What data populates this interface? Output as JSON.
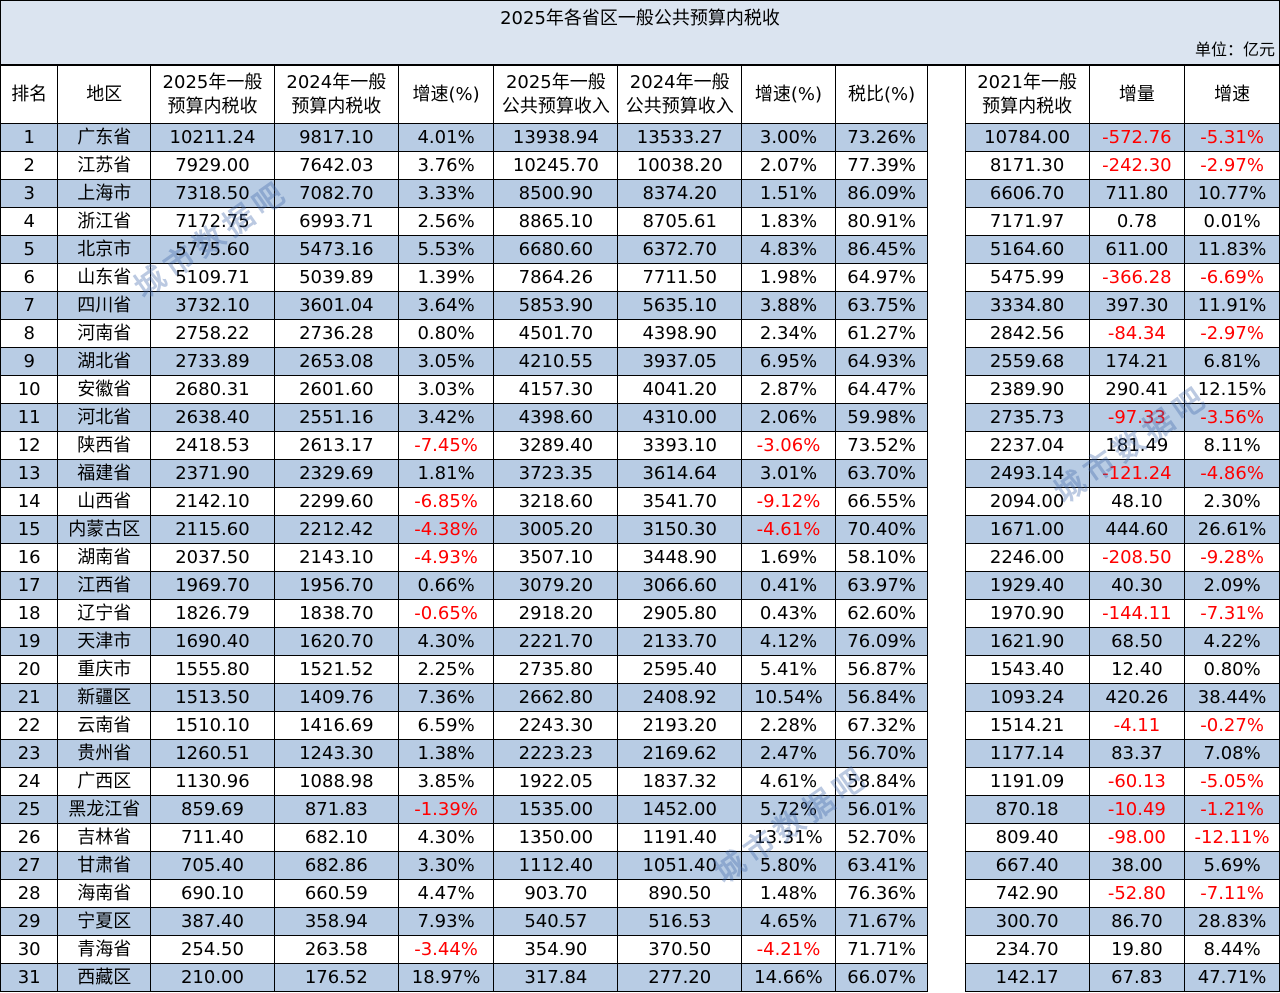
{
  "title": "2025年各省区一般公共预算内税收",
  "unit": "单位：亿元",
  "headers": [
    "排名",
    "地区",
    "2025年一般 预算内税收",
    "2024年一般 预算内税收",
    "增速(%)",
    "2025年一般 公共预算收入",
    "2024年一般 公共预算收入",
    "增速(%)",
    "税比(%)",
    "2021年一般 预算内税收",
    "增量",
    "增速"
  ],
  "rows": [
    [
      "1",
      "广东省",
      "10211.24",
      "9817.10",
      "4.01%",
      "13938.94",
      "13533.27",
      "3.00%",
      "73.26%",
      "10784.00",
      "-572.76",
      "-5.31%"
    ],
    [
      "2",
      "江苏省",
      "7929.00",
      "7642.03",
      "3.76%",
      "10245.70",
      "10038.20",
      "2.07%",
      "77.39%",
      "8171.30",
      "-242.30",
      "-2.97%"
    ],
    [
      "3",
      "上海市",
      "7318.50",
      "7082.70",
      "3.33%",
      "8500.90",
      "8374.20",
      "1.51%",
      "86.09%",
      "6606.70",
      "711.80",
      "10.77%"
    ],
    [
      "4",
      "浙江省",
      "7172.75",
      "6993.71",
      "2.56%",
      "8865.10",
      "8705.61",
      "1.83%",
      "80.91%",
      "7171.97",
      "0.78",
      "0.01%"
    ],
    [
      "5",
      "北京市",
      "5775.60",
      "5473.16",
      "5.53%",
      "6680.60",
      "6372.70",
      "4.83%",
      "86.45%",
      "5164.60",
      "611.00",
      "11.83%"
    ],
    [
      "6",
      "山东省",
      "5109.71",
      "5039.89",
      "1.39%",
      "7864.26",
      "7711.50",
      "1.98%",
      "64.97%",
      "5475.99",
      "-366.28",
      "-6.69%"
    ],
    [
      "7",
      "四川省",
      "3732.10",
      "3601.04",
      "3.64%",
      "5853.90",
      "5635.10",
      "3.88%",
      "63.75%",
      "3334.80",
      "397.30",
      "11.91%"
    ],
    [
      "8",
      "河南省",
      "2758.22",
      "2736.28",
      "0.80%",
      "4501.70",
      "4398.90",
      "2.34%",
      "61.27%",
      "2842.56",
      "-84.34",
      "-2.97%"
    ],
    [
      "9",
      "湖北省",
      "2733.89",
      "2653.08",
      "3.05%",
      "4210.55",
      "3937.05",
      "6.95%",
      "64.93%",
      "2559.68",
      "174.21",
      "6.81%"
    ],
    [
      "10",
      "安徽省",
      "2680.31",
      "2601.60",
      "3.03%",
      "4157.30",
      "4041.20",
      "2.87%",
      "64.47%",
      "2389.90",
      "290.41",
      "12.15%"
    ],
    [
      "11",
      "河北省",
      "2638.40",
      "2551.16",
      "3.42%",
      "4398.60",
      "4310.00",
      "2.06%",
      "59.98%",
      "2735.73",
      "-97.33",
      "-3.56%"
    ],
    [
      "12",
      "陕西省",
      "2418.53",
      "2613.17",
      "-7.45%",
      "3289.40",
      "3393.10",
      "-3.06%",
      "73.52%",
      "2237.04",
      "181.49",
      "8.11%"
    ],
    [
      "13",
      "福建省",
      "2371.90",
      "2329.69",
      "1.81%",
      "3723.35",
      "3614.64",
      "3.01%",
      "63.70%",
      "2493.14",
      "-121.24",
      "-4.86%"
    ],
    [
      "14",
      "山西省",
      "2142.10",
      "2299.60",
      "-6.85%",
      "3218.60",
      "3541.70",
      "-9.12%",
      "66.55%",
      "2094.00",
      "48.10",
      "2.30%"
    ],
    [
      "15",
      "内蒙古区",
      "2115.60",
      "2212.42",
      "-4.38%",
      "3005.20",
      "3150.30",
      "-4.61%",
      "70.40%",
      "1671.00",
      "444.60",
      "26.61%"
    ],
    [
      "16",
      "湖南省",
      "2037.50",
      "2143.10",
      "-4.93%",
      "3507.10",
      "3448.90",
      "1.69%",
      "58.10%",
      "2246.00",
      "-208.50",
      "-9.28%"
    ],
    [
      "17",
      "江西省",
      "1969.70",
      "1956.70",
      "0.66%",
      "3079.20",
      "3066.60",
      "0.41%",
      "63.97%",
      "1929.40",
      "40.30",
      "2.09%"
    ],
    [
      "18",
      "辽宁省",
      "1826.79",
      "1838.70",
      "-0.65%",
      "2918.20",
      "2905.80",
      "0.43%",
      "62.60%",
      "1970.90",
      "-144.11",
      "-7.31%"
    ],
    [
      "19",
      "天津市",
      "1690.40",
      "1620.70",
      "4.30%",
      "2221.70",
      "2133.70",
      "4.12%",
      "76.09%",
      "1621.90",
      "68.50",
      "4.22%"
    ],
    [
      "20",
      "重庆市",
      "1555.80",
      "1521.52",
      "2.25%",
      "2735.80",
      "2595.40",
      "5.41%",
      "56.87%",
      "1543.40",
      "12.40",
      "0.80%"
    ],
    [
      "21",
      "新疆区",
      "1513.50",
      "1409.76",
      "7.36%",
      "2662.80",
      "2408.92",
      "10.54%",
      "56.84%",
      "1093.24",
      "420.26",
      "38.44%"
    ],
    [
      "22",
      "云南省",
      "1510.10",
      "1416.69",
      "6.59%",
      "2243.30",
      "2193.20",
      "2.28%",
      "67.32%",
      "1514.21",
      "-4.11",
      "-0.27%"
    ],
    [
      "23",
      "贵州省",
      "1260.51",
      "1243.30",
      "1.38%",
      "2223.23",
      "2169.62",
      "2.47%",
      "56.70%",
      "1177.14",
      "83.37",
      "7.08%"
    ],
    [
      "24",
      "广西区",
      "1130.96",
      "1088.98",
      "3.85%",
      "1922.05",
      "1837.32",
      "4.61%",
      "58.84%",
      "1191.09",
      "-60.13",
      "-5.05%"
    ],
    [
      "25",
      "黑龙江省",
      "859.69",
      "871.83",
      "-1.39%",
      "1535.00",
      "1452.00",
      "5.72%",
      "56.01%",
      "870.18",
      "-10.49",
      "-1.21%"
    ],
    [
      "26",
      "吉林省",
      "711.40",
      "682.10",
      "4.30%",
      "1350.00",
      "1191.40",
      "13.31%",
      "52.70%",
      "809.40",
      "-98.00",
      "-12.11%"
    ],
    [
      "27",
      "甘肃省",
      "705.40",
      "682.86",
      "3.30%",
      "1112.40",
      "1051.40",
      "5.80%",
      "63.41%",
      "667.40",
      "38.00",
      "5.69%"
    ],
    [
      "28",
      "海南省",
      "690.10",
      "660.59",
      "4.47%",
      "903.70",
      "890.50",
      "1.48%",
      "76.36%",
      "742.90",
      "-52.80",
      "-7.11%"
    ],
    [
      "29",
      "宁夏区",
      "387.40",
      "358.94",
      "7.93%",
      "540.57",
      "516.53",
      "4.65%",
      "71.67%",
      "300.70",
      "86.70",
      "28.83%"
    ],
    [
      "30",
      "青海省",
      "254.50",
      "263.58",
      "-3.44%",
      "354.90",
      "370.50",
      "-4.21%",
      "71.71%",
      "234.70",
      "19.80",
      "8.44%"
    ],
    [
      "31",
      "西藏区",
      "210.00",
      "176.52",
      "18.97%",
      "317.84",
      "277.20",
      "14.66%",
      "66.07%",
      "142.17",
      "67.83",
      "47.71%"
    ]
  ],
  "watermark": "城市数据吧",
  "colors": {
    "header_band": "#dbe4f0",
    "alt_row": "#b8cce4",
    "negative": "#ff0000"
  }
}
